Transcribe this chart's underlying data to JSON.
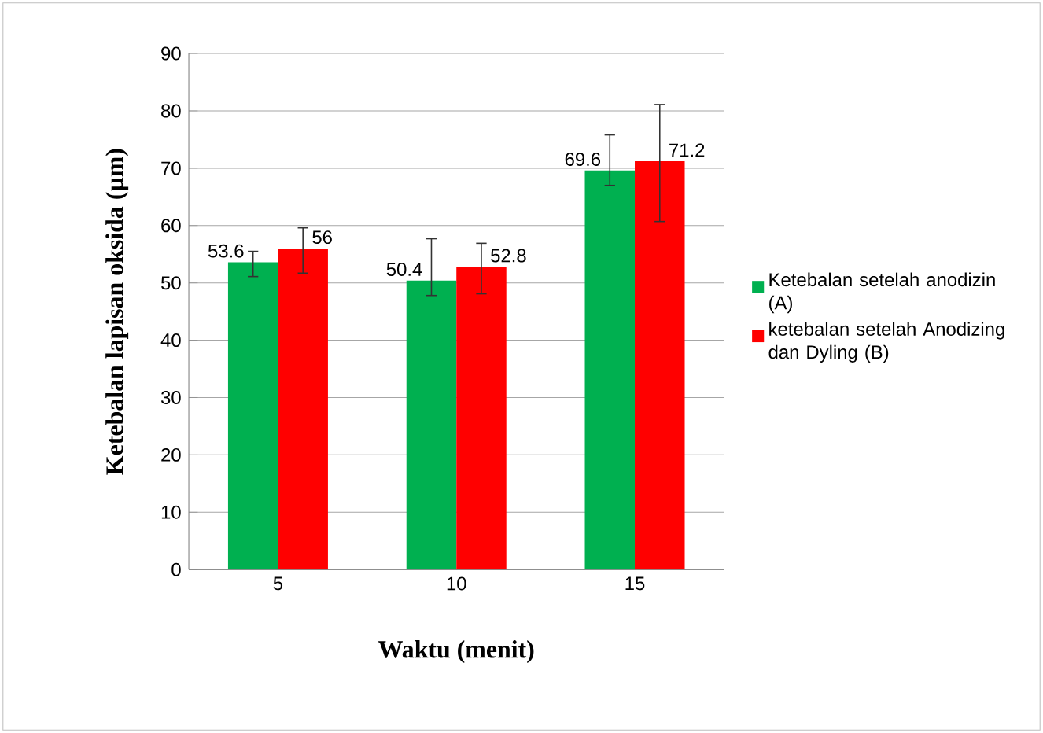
{
  "chart_data": {
    "type": "bar",
    "xlabel": "Waktu  (menit)",
    "ylabel": "Ketebalan lapisan oksida (µm)",
    "categories": [
      "5",
      "10",
      "15"
    ],
    "series": [
      {
        "name": "Ketebalan setelah anodizin (A)",
        "color": "#00b050",
        "values": [
          53.6,
          50.4,
          69.6
        ],
        "errors": [
          [
            51.1,
            55.5
          ],
          [
            47.8,
            57.7
          ],
          [
            67.0,
            75.8
          ]
        ]
      },
      {
        "name": "ketebalan setelah Anodizing dan Dyling (B)",
        "color": "#ff0000",
        "values": [
          56,
          52.8,
          71.2
        ],
        "errors": [
          [
            51.7,
            59.6
          ],
          [
            48.1,
            56.9
          ],
          [
            60.7,
            81.1
          ]
        ]
      }
    ],
    "ylim": [
      0,
      90
    ],
    "yticks": [
      0,
      10,
      20,
      30,
      40,
      50,
      60,
      70,
      80,
      90
    ],
    "grid": "y",
    "legend": "right",
    "data_labels": true
  }
}
